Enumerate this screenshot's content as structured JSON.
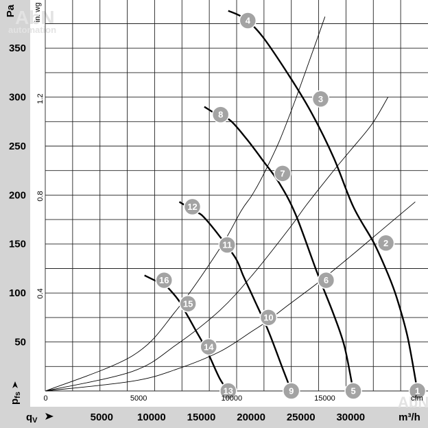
{
  "chart_data": {
    "type": "line",
    "title": "",
    "watermarks": [
      "AbN",
      "automation",
      "AbN"
    ],
    "axes": {
      "y_primary": {
        "label": "Pa",
        "ylim": [
          0,
          390
        ],
        "ticks": [
          50,
          100,
          150,
          200,
          250,
          300,
          350
        ],
        "tick_labels": [
          "50",
          "100",
          "150",
          "200",
          "250",
          "300",
          "350"
        ]
      },
      "y_secondary": {
        "label": "in. wg",
        "ticks": [
          0.4,
          0.8,
          1.2
        ],
        "tick_labels": [
          "0.4",
          "0.8",
          "1.2"
        ]
      },
      "x_primary": {
        "label": "m³/h",
        "xlim": [
          0,
          32500
        ],
        "ticks": [
          5000,
          10000,
          15000,
          20000,
          25000,
          30000
        ],
        "tick_labels": [
          "5000",
          "10000",
          "15000",
          "20000",
          "25000",
          "30000"
        ]
      },
      "x_secondary": {
        "label": "cfm",
        "ticks": [
          0,
          5000,
          10000,
          15000
        ],
        "tick_labels": [
          "0",
          "5000",
          "10000",
          "15000"
        ]
      },
      "y_symbol": {
        "main": "p",
        "sub": "fs"
      },
      "x_symbol": {
        "main": "q",
        "sub": "V"
      },
      "grid": true
    },
    "series": [
      {
        "points": [
          [
            16800,
            388
          ],
          [
            18300,
            380
          ],
          [
            20000,
            361
          ],
          [
            22500,
            320
          ],
          [
            24500,
            283
          ],
          [
            26500,
            238
          ],
          [
            28300,
            188
          ],
          [
            30200,
            151
          ],
          [
            31500,
            119
          ],
          [
            32300,
            95
          ],
          [
            33300,
            55
          ],
          [
            34200,
            0
          ]
        ]
      },
      {
        "points": [
          [
            14600,
            290
          ],
          [
            15800,
            282
          ],
          [
            17000,
            276
          ],
          [
            18500,
            257
          ],
          [
            20000,
            235
          ],
          [
            21500,
            212
          ],
          [
            23000,
            180
          ],
          [
            25000,
            120
          ],
          [
            26500,
            78
          ],
          [
            27500,
            45
          ],
          [
            28300,
            0
          ]
        ]
      },
      {
        "points": [
          [
            12300,
            193
          ],
          [
            13800,
            183
          ],
          [
            14500,
            178
          ],
          [
            16000,
            158
          ],
          [
            17500,
            135
          ],
          [
            18200,
            117
          ],
          [
            19200,
            93
          ],
          [
            20500,
            61
          ],
          [
            21800,
            23
          ],
          [
            22600,
            0
          ]
        ]
      },
      {
        "points": [
          [
            9100,
            118
          ],
          [
            10200,
            112
          ],
          [
            11000,
            108
          ],
          [
            12200,
            93
          ],
          [
            13000,
            78
          ],
          [
            13800,
            62
          ],
          [
            14800,
            42
          ],
          [
            16000,
            13
          ],
          [
            16800,
            0
          ]
        ]
      }
    ],
    "system_curves": [
      {
        "points": [
          [
            0,
            0
          ],
          [
            8000,
            36
          ],
          [
            12000,
            82
          ],
          [
            16000,
            145
          ],
          [
            18000,
            184
          ],
          [
            19000,
            200
          ],
          [
            20000,
            220
          ],
          [
            21500,
            255
          ],
          [
            23000,
            298
          ],
          [
            25000,
            360
          ],
          [
            25700,
            382
          ]
        ]
      },
      {
        "points": [
          [
            0,
            0
          ],
          [
            8000,
            20
          ],
          [
            12000,
            47
          ],
          [
            16000,
            82
          ],
          [
            19000,
            118
          ],
          [
            22500,
            167
          ],
          [
            24000,
            190
          ],
          [
            26500,
            225
          ],
          [
            28000,
            245
          ],
          [
            30000,
            272
          ],
          [
            31500,
            300
          ]
        ]
      },
      {
        "points": [
          [
            0,
            0
          ],
          [
            8000,
            10
          ],
          [
            12000,
            22
          ],
          [
            16000,
            40
          ],
          [
            19000,
            61
          ],
          [
            20500,
            72
          ],
          [
            22000,
            85
          ],
          [
            25000,
            110
          ],
          [
            28000,
            137
          ],
          [
            31000,
            165
          ],
          [
            34000,
            193
          ]
        ]
      }
    ],
    "markers": [
      {
        "label": "1",
        "x": 34200,
        "y": 0
      },
      {
        "label": "2",
        "x": 31300,
        "y": 151
      },
      {
        "label": "3",
        "x": 25300,
        "y": 298
      },
      {
        "label": "4",
        "x": 18600,
        "y": 378
      },
      {
        "label": "5",
        "x": 28300,
        "y": 0
      },
      {
        "label": "6",
        "x": 25800,
        "y": 113
      },
      {
        "label": "7",
        "x": 21800,
        "y": 222
      },
      {
        "label": "8",
        "x": 16100,
        "y": 282
      },
      {
        "label": "9",
        "x": 22600,
        "y": 0
      },
      {
        "label": "10",
        "x": 20500,
        "y": 75
      },
      {
        "label": "11",
        "x": 16700,
        "y": 149
      },
      {
        "label": "12",
        "x": 13500,
        "y": 188
      },
      {
        "label": "13",
        "x": 16800,
        "y": 0
      },
      {
        "label": "14",
        "x": 15000,
        "y": 45
      },
      {
        "label": "15",
        "x": 13100,
        "y": 89
      },
      {
        "label": "16",
        "x": 10900,
        "y": 113
      }
    ]
  }
}
